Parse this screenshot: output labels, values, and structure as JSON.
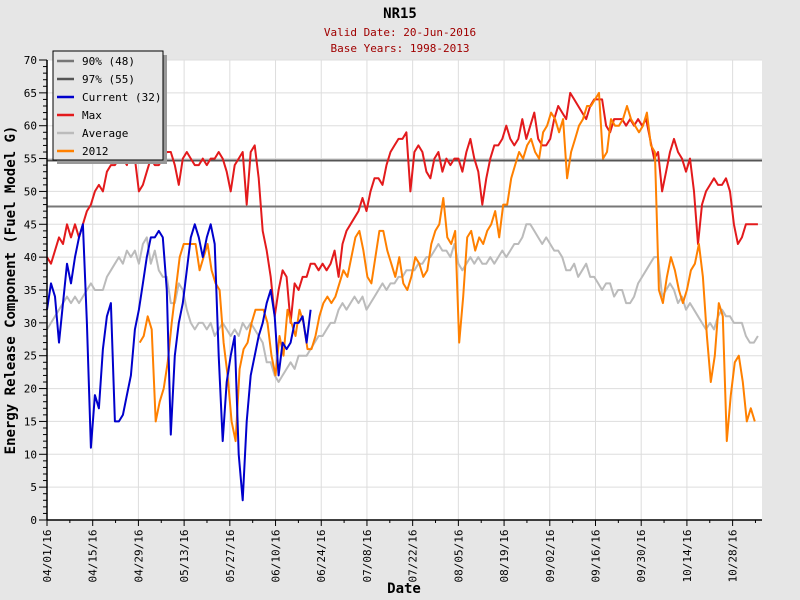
{
  "chart_data": {
    "type": "line",
    "title": "NR15",
    "subtitle_lines": [
      "Valid Date: 20-Jun-2016",
      "Base Years: 1998-2013"
    ],
    "xlabel": "Date",
    "ylabel": "Energy Release Component (Fuel Model G)",
    "ylim": [
      0,
      70
    ],
    "y_ticks": [
      0,
      5,
      10,
      15,
      20,
      25,
      30,
      35,
      40,
      45,
      50,
      55,
      60,
      65,
      70
    ],
    "x_unit": "days since 04/01/16",
    "xlim": [
      0,
      219
    ],
    "x_ticks": [
      {
        "day": 0,
        "label": "04/01/16"
      },
      {
        "day": 14,
        "label": "04/15/16"
      },
      {
        "day": 28,
        "label": "04/29/16"
      },
      {
        "day": 42,
        "label": "05/13/16"
      },
      {
        "day": 56,
        "label": "05/27/16"
      },
      {
        "day": 70,
        "label": "06/10/16"
      },
      {
        "day": 84,
        "label": "06/24/16"
      },
      {
        "day": 98,
        "label": "07/08/16"
      },
      {
        "day": 112,
        "label": "07/22/16"
      },
      {
        "day": 126,
        "label": "08/05/16"
      },
      {
        "day": 140,
        "label": "08/19/16"
      },
      {
        "day": 154,
        "label": "09/02/16"
      },
      {
        "day": 168,
        "label": "09/16/16"
      },
      {
        "day": 182,
        "label": "09/30/16"
      },
      {
        "day": 196,
        "label": "10/14/16"
      },
      {
        "day": 210,
        "label": "10/28/16"
      }
    ],
    "grid": true,
    "legend_position": "top-left",
    "reference_lines": [
      {
        "name": "90% (48)",
        "value": 47.7,
        "color": "#777777"
      },
      {
        "name": "97% (55)",
        "value": 54.7,
        "color": "#555555"
      }
    ],
    "series": [
      {
        "name": "Current (32)",
        "color": "#0000cc",
        "start_day": 0,
        "step_days": 1.2233,
        "values": [
          32,
          36,
          34,
          27,
          33,
          39,
          36,
          40,
          43,
          45,
          30,
          11,
          19,
          17,
          26,
          31,
          33,
          15,
          15,
          16,
          19,
          22,
          29,
          32,
          36,
          40,
          43,
          43,
          44,
          43,
          35,
          13,
          25,
          30,
          33,
          38,
          43,
          45,
          43,
          40,
          43,
          45,
          42,
          25,
          12,
          21,
          25,
          28,
          10,
          3,
          15,
          22,
          25,
          28,
          30,
          33,
          35,
          31,
          22,
          27,
          26,
          27,
          30,
          30,
          31,
          27,
          32
        ]
      },
      {
        "name": "Max",
        "color": "#e31a1c",
        "start_day": 0,
        "step_days": 1.2233,
        "values": [
          40,
          39,
          41,
          43,
          42,
          45,
          43,
          45,
          43,
          45,
          47,
          48,
          50,
          51,
          50,
          53,
          54,
          54,
          55,
          55,
          54,
          57,
          55,
          50,
          51,
          53,
          55,
          54,
          54,
          55,
          56,
          56,
          54,
          51,
          55,
          56,
          55,
          54,
          54,
          55,
          54,
          55,
          55,
          56,
          55,
          53,
          50,
          54,
          55,
          56,
          48,
          56,
          57,
          52,
          44,
          41,
          37,
          31,
          35,
          38,
          37,
          30,
          36,
          35,
          37,
          37,
          39,
          39,
          38,
          39,
          38,
          39,
          41,
          37,
          42,
          44,
          45,
          46,
          47,
          49,
          47,
          50,
          52,
          52,
          51,
          54,
          56,
          57,
          58,
          58,
          59,
          50,
          56,
          57,
          56,
          53,
          52,
          55,
          56,
          53,
          55,
          54,
          55,
          55,
          53,
          56,
          58,
          55,
          53,
          48,
          52,
          55,
          57,
          57,
          58,
          60,
          58,
          57,
          58,
          61,
          58,
          60,
          62,
          58,
          57,
          57,
          58,
          61,
          63,
          62,
          61,
          65,
          64,
          63,
          62,
          61,
          63,
          64,
          64,
          64,
          60,
          59,
          61,
          61,
          61,
          60,
          61,
          60,
          61,
          60,
          61,
          58,
          55,
          56,
          50,
          53,
          56,
          58,
          56,
          55,
          53,
          55,
          50,
          42,
          48,
          50,
          51,
          52,
          51,
          51,
          52,
          50,
          45,
          42,
          43,
          45,
          45,
          45,
          45
        ]
      },
      {
        "name": "Average",
        "color": "#bbbbbb",
        "start_day": 0,
        "step_days": 1.2233,
        "values": [
          29,
          30,
          31,
          32,
          33,
          34,
          33,
          34,
          33,
          34,
          35,
          36,
          35,
          35,
          35,
          37,
          38,
          39,
          40,
          39,
          41,
          40,
          41,
          39,
          42,
          43,
          39,
          41,
          38,
          37,
          37,
          33,
          33,
          36,
          35,
          32,
          30,
          29,
          30,
          30,
          29,
          30,
          28,
          29,
          30,
          29,
          28,
          29,
          28,
          30,
          29,
          30,
          29,
          28,
          27,
          24,
          24,
          22,
          21,
          22,
          23,
          24,
          23,
          25,
          25,
          25,
          26,
          27,
          28,
          28,
          29,
          30,
          30,
          32,
          33,
          32,
          33,
          34,
          33,
          34,
          32,
          33,
          34,
          35,
          36,
          35,
          36,
          36,
          37,
          37,
          38,
          38,
          38,
          39,
          39,
          40,
          40,
          41,
          42,
          41,
          41,
          40,
          42,
          39,
          38,
          39,
          40,
          39,
          40,
          39,
          39,
          40,
          39,
          40,
          41,
          40,
          41,
          42,
          42,
          43,
          45,
          45,
          44,
          43,
          42,
          43,
          42,
          41,
          41,
          40,
          38,
          38,
          39,
          37,
          38,
          39,
          37,
          37,
          36,
          35,
          36,
          36,
          34,
          35,
          35,
          33,
          33,
          34,
          36,
          37,
          38,
          39,
          40,
          40,
          34,
          35,
          36,
          35,
          33,
          34,
          32,
          33,
          32,
          31,
          30,
          29,
          30,
          29,
          31,
          32,
          31,
          31,
          30,
          30,
          30,
          28,
          27,
          27,
          28
        ]
      },
      {
        "name": "2012",
        "color": "#ff8000",
        "start_day": 28.4,
        "step_days": 1.2233,
        "values": [
          27,
          28,
          31,
          29,
          15,
          18,
          20,
          24,
          30,
          35,
          40,
          42,
          42,
          42,
          42,
          38,
          40,
          42,
          38,
          36,
          35,
          27,
          22,
          15,
          12,
          23,
          26,
          27,
          30,
          32,
          32,
          32,
          30,
          25,
          22,
          28,
          25,
          32,
          30,
          28,
          32,
          30,
          26,
          26,
          28,
          31,
          33,
          34,
          33,
          34,
          36,
          38,
          37,
          40,
          43,
          44,
          41,
          37,
          36,
          40,
          44,
          44,
          41,
          39,
          37,
          40,
          36,
          35,
          37,
          40,
          39,
          37,
          38,
          42,
          44,
          45,
          49,
          43,
          42,
          44,
          27,
          34,
          43,
          44,
          41,
          43,
          42,
          44,
          45,
          47,
          43,
          48,
          48,
          52,
          54,
          56,
          55,
          57,
          58,
          56,
          55,
          59,
          60,
          62,
          61,
          59,
          61,
          52,
          56,
          58,
          60,
          61,
          63,
          63,
          64,
          65,
          55,
          56,
          61,
          60,
          60,
          61,
          63,
          61,
          60,
          59,
          60,
          62,
          57,
          56,
          35,
          33,
          37,
          40,
          38,
          35,
          33,
          35,
          38,
          39,
          42,
          37,
          28,
          21,
          25,
          33,
          31,
          12,
          19,
          24,
          25,
          21,
          15,
          17,
          15
        ]
      }
    ]
  }
}
